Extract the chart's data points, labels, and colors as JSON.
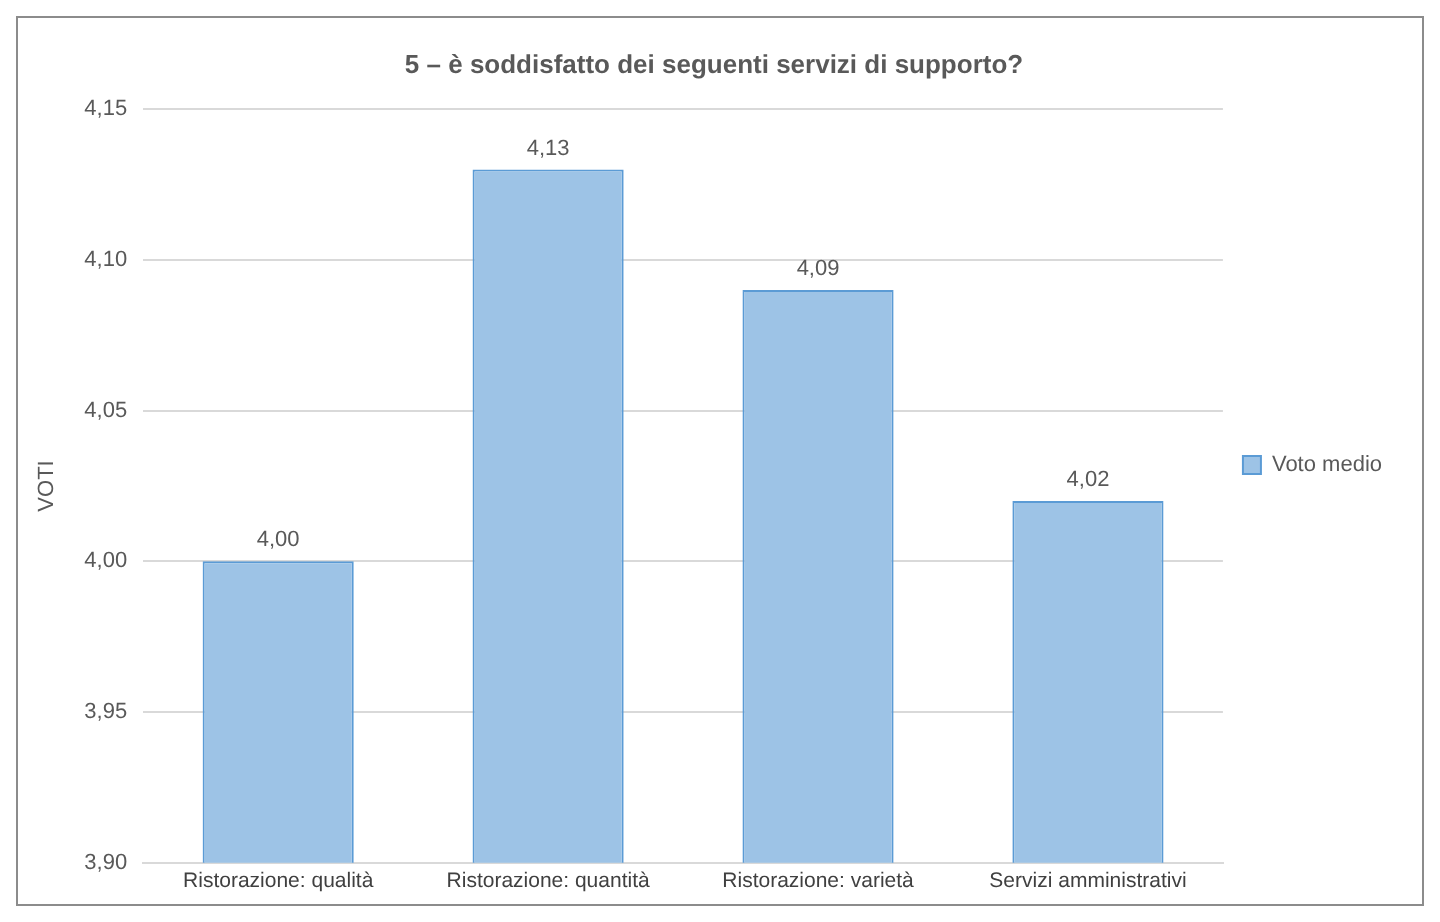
{
  "chart_data": {
    "type": "bar",
    "title": "5 – è soddisfatto dei seguenti servizi di supporto?",
    "ylabel": "VOTI",
    "categories": [
      "Ristorazione: qualità",
      "Ristorazione: quantità",
      "Ristorazione: varietà",
      "Servizi amministrativi"
    ],
    "series": [
      {
        "name": "Voto medio",
        "color": "#9dc3e6",
        "values": [
          4.0,
          4.13,
          4.09,
          4.02
        ],
        "value_labels": [
          "4,00",
          "4,13",
          "4,09",
          "4,02"
        ]
      }
    ],
    "ylim": [
      3.9,
      4.15
    ],
    "yticks": [
      {
        "value": 3.9,
        "label": "3,90"
      },
      {
        "value": 3.95,
        "label": "3,95"
      },
      {
        "value": 4.0,
        "label": "4,00"
      },
      {
        "value": 4.05,
        "label": "4,05"
      },
      {
        "value": 4.1,
        "label": "4,10"
      },
      {
        "value": 4.15,
        "label": "4,15"
      }
    ],
    "grid": "y",
    "legend": "right"
  }
}
